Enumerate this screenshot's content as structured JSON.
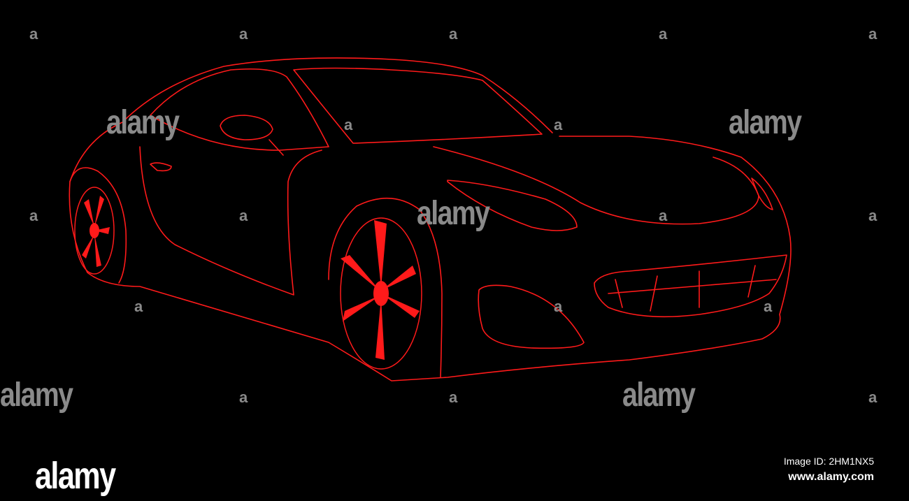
{
  "scene": {
    "subject": "sports-car-outline",
    "background_color": "#000000",
    "line_color": "#ff1a1a"
  },
  "watermark": {
    "word": "alamy",
    "small_mark": "a",
    "color": "#8a8a8a"
  },
  "footer": {
    "logo": "alamy",
    "image_id": "Image ID: 2HM1NX5",
    "url": "www.alamy.com"
  }
}
